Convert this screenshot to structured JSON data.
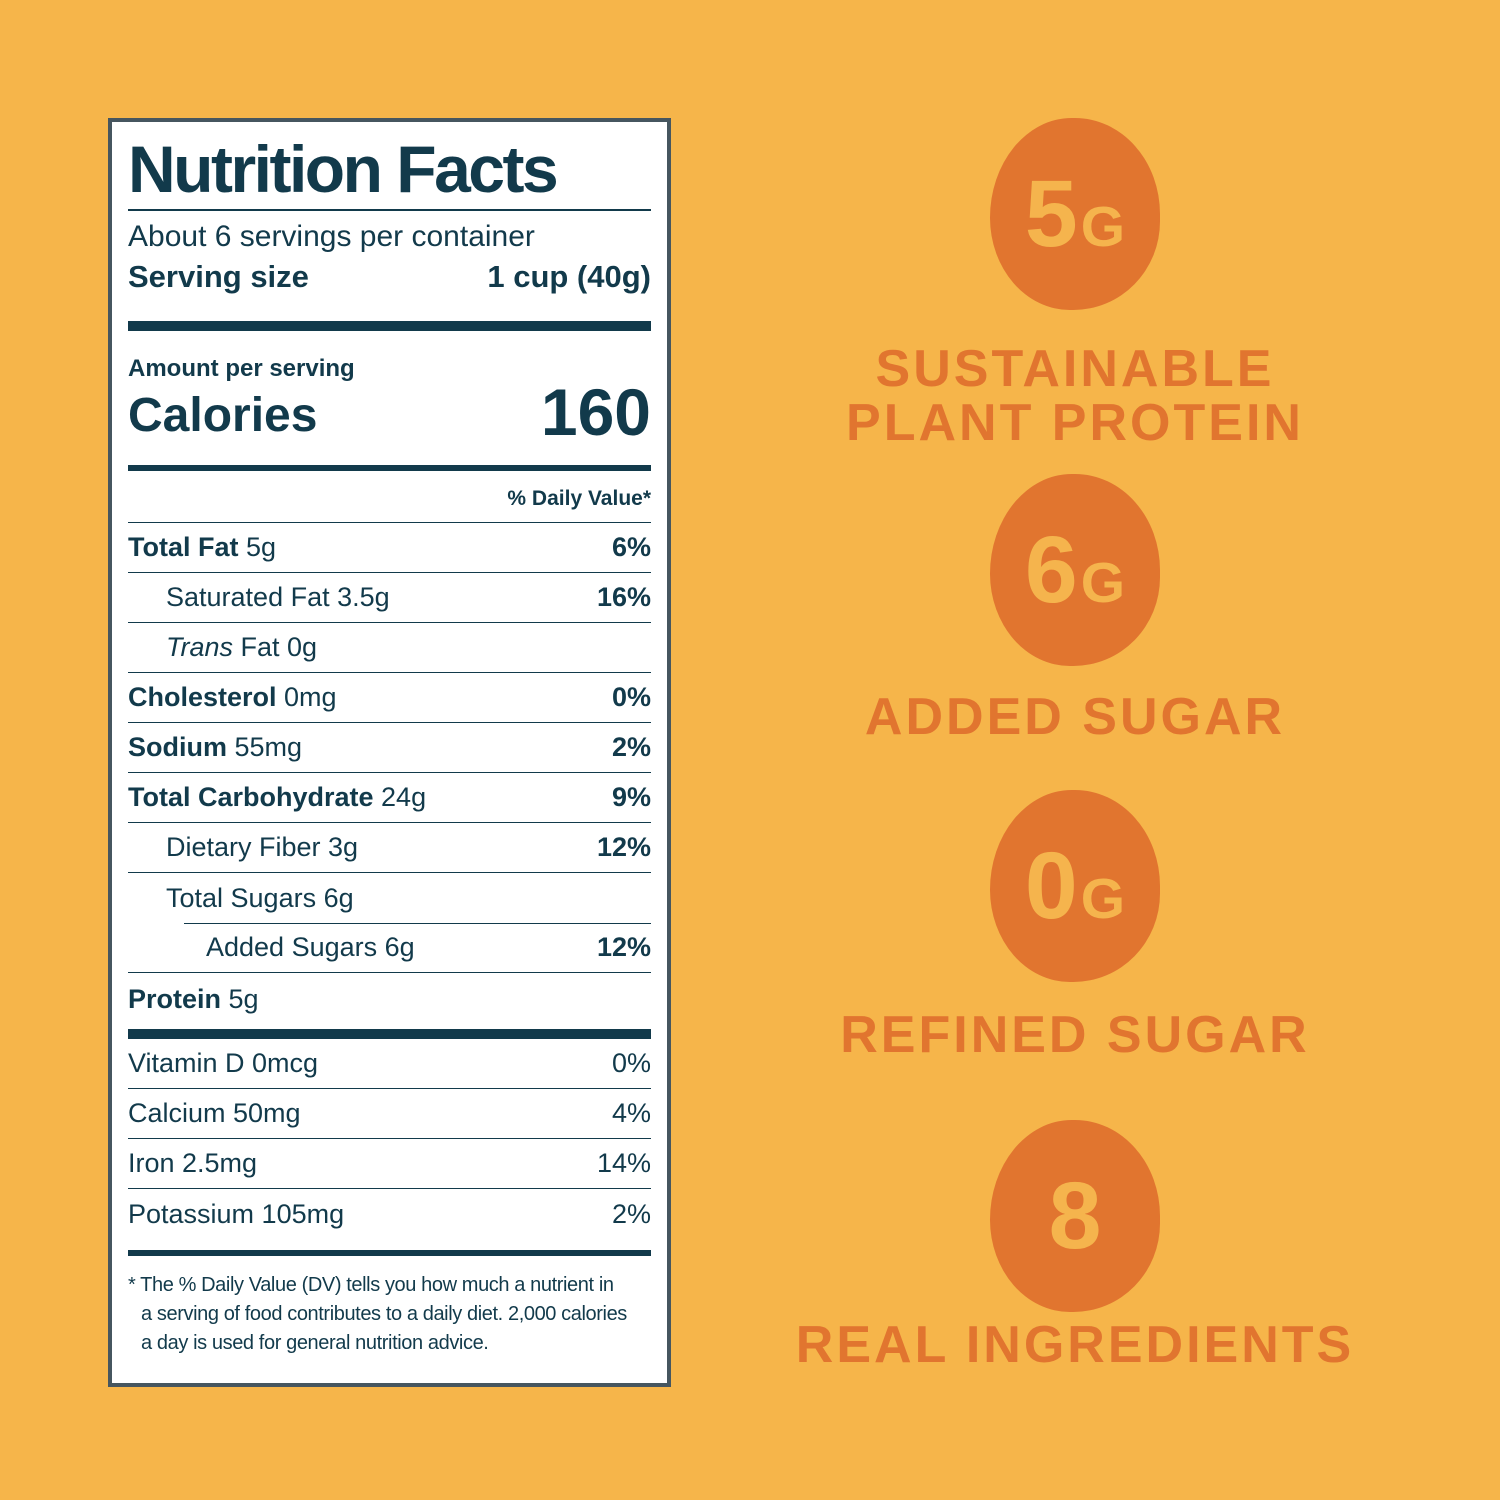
{
  "colors": {
    "background": "#F6B54A",
    "accent_orange": "#E1752F",
    "navy_text": "#123A4B",
    "panel_background": "#FFFFFF",
    "panel_border": "#46565F"
  },
  "label": {
    "title": "Nutrition Facts",
    "servings_per_container": "About 6 servings per container",
    "serving_size_label": "Serving size",
    "serving_size_value": "1 cup (40g)",
    "amount_per_serving": "Amount per serving",
    "calories_label": "Calories",
    "calories_value": "160",
    "daily_value_header": "% Daily Value*",
    "rows": [
      {
        "bold": "Total Fat",
        "italic": "",
        "rest": " 5g",
        "dv": "6%"
      },
      {
        "bold": "",
        "italic": "",
        "rest": "Saturated Fat 3.5g",
        "dv": "16%"
      },
      {
        "bold": "",
        "italic": "Trans",
        "rest": " Fat 0g",
        "dv": ""
      },
      {
        "bold": "Cholesterol",
        "italic": "",
        "rest": " 0mg",
        "dv": "0%"
      },
      {
        "bold": "Sodium",
        "italic": "",
        "rest": " 55mg",
        "dv": "2%"
      },
      {
        "bold": "Total Carbohydrate",
        "italic": "",
        "rest": " 24g",
        "dv": "9%"
      },
      {
        "bold": "",
        "italic": "",
        "rest": "Dietary Fiber 3g",
        "dv": "12%"
      },
      {
        "bold": "",
        "italic": "",
        "rest": "Total Sugars 6g",
        "dv": ""
      },
      {
        "bold": "",
        "italic": "",
        "rest": "Added Sugars 6g",
        "dv": "12%"
      },
      {
        "bold": "Protein",
        "italic": "",
        "rest": " 5g",
        "dv": ""
      }
    ],
    "vitamins": [
      {
        "name": "Vitamin D 0mcg",
        "dv": "0%"
      },
      {
        "name": "Calcium 50mg",
        "dv": "4%"
      },
      {
        "name": "Iron 2.5mg",
        "dv": "14%"
      },
      {
        "name": "Potassium 105mg",
        "dv": "2%"
      }
    ],
    "footnote_lines": [
      "* The % Daily Value (DV) tells you how much a nutrient in",
      "a serving of food contributes to a daily diet. 2,000 calories",
      "a day is used for general nutrition advice."
    ]
  },
  "badges": [
    {
      "amount": "5",
      "unit": "G",
      "caption_line1": "SUSTAINABLE",
      "caption_line2": "PLANT PROTEIN"
    },
    {
      "amount": "6",
      "unit": "G",
      "caption_line1": "ADDED SUGAR",
      "caption_line2": ""
    },
    {
      "amount": "0",
      "unit": "G",
      "caption_line1": "REFINED SUGAR",
      "caption_line2": ""
    },
    {
      "amount": "8",
      "unit": "",
      "caption_line1": "REAL INGREDIENTS",
      "caption_line2": ""
    }
  ]
}
